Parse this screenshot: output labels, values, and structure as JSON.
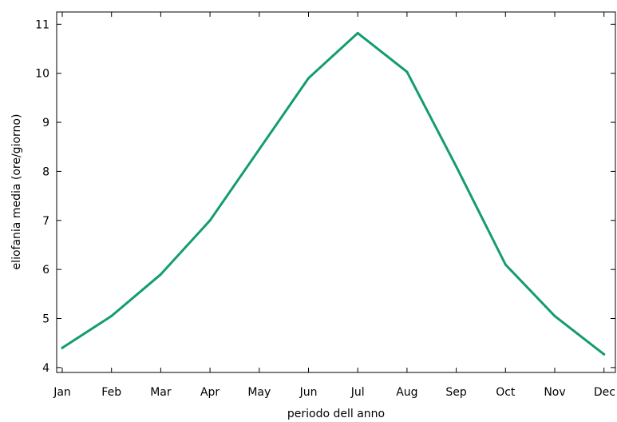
{
  "chart_data": {
    "type": "line",
    "title": "",
    "xlabel": "periodo dell anno",
    "ylabel": "eliofania media (ore/giorno)",
    "categories": [
      "Jan",
      "Feb",
      "Mar",
      "Apr",
      "May",
      "Jun",
      "Jul",
      "Aug",
      "Sep",
      "Oct",
      "Nov",
      "Dec"
    ],
    "series": [
      {
        "values": [
          4.4,
          5.05,
          5.9,
          7.0,
          8.45,
          9.9,
          10.82,
          10.03,
          8.1,
          6.1,
          5.05,
          4.27
        ],
        "color": "#139d6e"
      }
    ],
    "ylim": [
      3.9,
      11.25
    ],
    "yticks": [
      4,
      5,
      6,
      7,
      8,
      9,
      10,
      11
    ],
    "grid": false,
    "legend": "none"
  }
}
